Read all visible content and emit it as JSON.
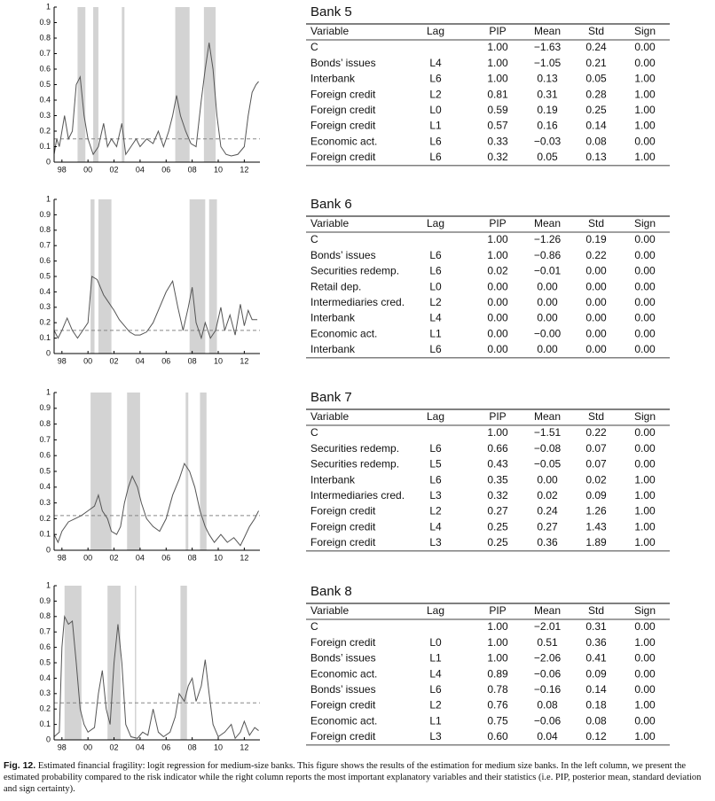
{
  "chart_data": [
    {
      "type": "line",
      "color": "#555555",
      "shade_color": "#d3d3d3",
      "threshold_color": "#888888",
      "x": [
        1997.4,
        1997.6,
        1997.8,
        1998.2,
        1998.5,
        1998.8,
        1999.1,
        1999.4,
        1999.7,
        2000.0,
        2000.4,
        2000.8,
        2001.2,
        2001.5,
        2001.8,
        2002.2,
        2002.6,
        2002.9,
        2003.3,
        2003.7,
        2004.0,
        2004.5,
        2005.0,
        2005.4,
        2005.8,
        2006.2,
        2006.5,
        2006.8,
        2007.1,
        2007.5,
        2007.9,
        2008.3,
        2008.7,
        2009.0,
        2009.3,
        2009.6,
        2009.9,
        2010.2,
        2010.6,
        2011.0,
        2011.5,
        2012.0,
        2012.3,
        2012.6,
        2012.9,
        2013.1
      ],
      "values": [
        0.05,
        0.15,
        0.1,
        0.3,
        0.15,
        0.2,
        0.5,
        0.55,
        0.3,
        0.15,
        0.05,
        0.1,
        0.25,
        0.1,
        0.15,
        0.1,
        0.25,
        0.05,
        0.1,
        0.15,
        0.1,
        0.15,
        0.12,
        0.2,
        0.1,
        0.2,
        0.3,
        0.43,
        0.3,
        0.2,
        0.12,
        0.1,
        0.4,
        0.6,
        0.77,
        0.6,
        0.3,
        0.1,
        0.05,
        0.04,
        0.05,
        0.1,
        0.3,
        0.45,
        0.5,
        0.52
      ],
      "shaded": [
        [
          1999.2,
          1999.8
        ],
        [
          2000.4,
          2000.8
        ],
        [
          2002.6,
          2002.8
        ],
        [
          2006.7,
          2007.8
        ],
        [
          2008.9,
          2009.8
        ]
      ],
      "threshold": 0.15,
      "xlim": [
        1997.4,
        2013.2
      ],
      "ylim": [
        0,
        1
      ],
      "xticks": [
        {
          "value": 1998,
          "label": "98"
        },
        {
          "value": 2000,
          "label": "00"
        },
        {
          "value": 2002,
          "label": "02"
        },
        {
          "value": 2004,
          "label": "04"
        },
        {
          "value": 2006,
          "label": "06"
        },
        {
          "value": 2008,
          "label": "08"
        },
        {
          "value": 2010,
          "label": "10"
        },
        {
          "value": 2012,
          "label": "12"
        }
      ],
      "yticks": [
        0,
        0.1,
        0.2,
        0.3,
        0.4,
        0.5,
        0.6,
        0.7,
        0.8,
        0.9,
        1
      ]
    },
    {
      "type": "line",
      "color": "#555555",
      "shade_color": "#d3d3d3",
      "threshold_color": "#888888",
      "x": [
        1997.4,
        1997.7,
        1998.0,
        1998.4,
        1998.8,
        1999.2,
        1999.6,
        2000.0,
        2000.3,
        2000.7,
        2001.2,
        2001.6,
        2002.0,
        2002.4,
        2002.8,
        2003.2,
        2003.6,
        2004.0,
        2004.5,
        2005.0,
        2005.5,
        2006.0,
        2006.5,
        2006.9,
        2007.3,
        2007.7,
        2008.0,
        2008.3,
        2008.7,
        2009.0,
        2009.4,
        2009.8,
        2010.2,
        2010.5,
        2010.9,
        2011.3,
        2011.7,
        2012.0,
        2012.3,
        2012.6,
        2013.0
      ],
      "values": [
        0.15,
        0.1,
        0.15,
        0.23,
        0.15,
        0.1,
        0.15,
        0.2,
        0.5,
        0.48,
        0.38,
        0.33,
        0.28,
        0.22,
        0.18,
        0.14,
        0.12,
        0.12,
        0.14,
        0.2,
        0.3,
        0.4,
        0.47,
        0.3,
        0.15,
        0.3,
        0.43,
        0.2,
        0.1,
        0.2,
        0.1,
        0.15,
        0.3,
        0.15,
        0.25,
        0.12,
        0.32,
        0.18,
        0.28,
        0.22,
        0.22
      ],
      "shaded": [
        [
          2000.2,
          2000.5
        ],
        [
          2000.8,
          2001.8
        ],
        [
          2007.8,
          2009.0
        ],
        [
          2009.3,
          2009.9
        ]
      ],
      "threshold": 0.15,
      "xlim": [
        1997.4,
        2013.2
      ],
      "ylim": [
        0,
        1
      ],
      "xticks": [
        {
          "value": 1998,
          "label": "98"
        },
        {
          "value": 2000,
          "label": "00"
        },
        {
          "value": 2002,
          "label": "02"
        },
        {
          "value": 2004,
          "label": "04"
        },
        {
          "value": 2006,
          "label": "06"
        },
        {
          "value": 2008,
          "label": "08"
        },
        {
          "value": 2010,
          "label": "10"
        },
        {
          "value": 2012,
          "label": "12"
        }
      ],
      "yticks": [
        0,
        0.1,
        0.2,
        0.3,
        0.4,
        0.5,
        0.6,
        0.7,
        0.8,
        0.9,
        1
      ]
    },
    {
      "type": "line",
      "color": "#555555",
      "shade_color": "#d3d3d3",
      "threshold_color": "#888888",
      "x": [
        1997.4,
        1997.7,
        1998.0,
        1998.5,
        1999.0,
        1999.5,
        2000.0,
        2000.5,
        2000.8,
        2001.1,
        2001.5,
        2001.8,
        2002.2,
        2002.5,
        2002.8,
        2003.1,
        2003.4,
        2003.8,
        2004.1,
        2004.5,
        2005.0,
        2005.5,
        2006.0,
        2006.5,
        2007.0,
        2007.4,
        2007.8,
        2008.2,
        2008.6,
        2009.0,
        2009.3,
        2009.7,
        2010.2,
        2010.7,
        2011.2,
        2011.7,
        2012.0,
        2012.4,
        2012.8,
        2013.1
      ],
      "values": [
        0.1,
        0.05,
        0.12,
        0.18,
        0.2,
        0.22,
        0.25,
        0.28,
        0.35,
        0.25,
        0.2,
        0.12,
        0.1,
        0.15,
        0.3,
        0.4,
        0.47,
        0.4,
        0.3,
        0.2,
        0.15,
        0.12,
        0.2,
        0.35,
        0.45,
        0.55,
        0.5,
        0.4,
        0.25,
        0.15,
        0.1,
        0.05,
        0.1,
        0.05,
        0.08,
        0.03,
        0.08,
        0.15,
        0.2,
        0.25
      ],
      "shaded": [
        [
          2000.2,
          2001.8
        ],
        [
          2003.0,
          2004.0
        ],
        [
          2007.5,
          2007.7
        ],
        [
          2008.6,
          2009.1
        ]
      ],
      "threshold": 0.22,
      "xlim": [
        1997.4,
        2013.2
      ],
      "ylim": [
        0,
        1
      ],
      "xticks": [
        {
          "value": 1998,
          "label": "98"
        },
        {
          "value": 2000,
          "label": "00"
        },
        {
          "value": 2002,
          "label": "02"
        },
        {
          "value": 2004,
          "label": "04"
        },
        {
          "value": 2006,
          "label": "06"
        },
        {
          "value": 2008,
          "label": "08"
        },
        {
          "value": 2010,
          "label": "10"
        },
        {
          "value": 2012,
          "label": "12"
        }
      ],
      "yticks": [
        0,
        0.1,
        0.2,
        0.3,
        0.4,
        0.5,
        0.6,
        0.7,
        0.8,
        0.9,
        1
      ]
    },
    {
      "type": "line",
      "color": "#555555",
      "shade_color": "#d3d3d3",
      "threshold_color": "#888888",
      "x": [
        1997.4,
        1997.8,
        1998.0,
        1998.2,
        1998.5,
        1998.8,
        1999.1,
        1999.4,
        1999.7,
        2000.0,
        2000.5,
        2000.8,
        2001.1,
        2001.4,
        2001.7,
        2002.0,
        2002.3,
        2002.6,
        2002.9,
        2003.3,
        2003.8,
        2004.2,
        2004.6,
        2005.0,
        2005.4,
        2005.8,
        2006.3,
        2006.7,
        2007.0,
        2007.4,
        2007.7,
        2008.0,
        2008.3,
        2008.7,
        2009.0,
        2009.3,
        2009.6,
        2010.0,
        2010.5,
        2011.0,
        2011.3,
        2011.7,
        2012.0,
        2012.4,
        2012.8,
        2013.1
      ],
      "values": [
        0.02,
        0.05,
        0.6,
        0.8,
        0.75,
        0.77,
        0.5,
        0.2,
        0.1,
        0.05,
        0.08,
        0.3,
        0.45,
        0.2,
        0.1,
        0.5,
        0.75,
        0.5,
        0.1,
        0.02,
        0.01,
        0.05,
        0.03,
        0.2,
        0.05,
        0.02,
        0.05,
        0.15,
        0.3,
        0.25,
        0.35,
        0.4,
        0.25,
        0.35,
        0.52,
        0.3,
        0.1,
        0.02,
        0.05,
        0.1,
        0.01,
        0.05,
        0.12,
        0.03,
        0.08,
        0.06
      ],
      "shaded": [
        [
          1998.2,
          1999.5
        ],
        [
          2001.5,
          2002.5
        ],
        [
          2003.6,
          2003.7
        ],
        [
          2007.1,
          2007.6
        ]
      ],
      "threshold": 0.24,
      "xlim": [
        1997.4,
        2013.2
      ],
      "ylim": [
        0,
        1
      ],
      "xticks": [
        {
          "value": 1998,
          "label": "98"
        },
        {
          "value": 2000,
          "label": "00"
        },
        {
          "value": 2002,
          "label": "02"
        },
        {
          "value": 2004,
          "label": "04"
        },
        {
          "value": 2006,
          "label": "06"
        },
        {
          "value": 2008,
          "label": "08"
        },
        {
          "value": 2010,
          "label": "10"
        },
        {
          "value": 2012,
          "label": "12"
        }
      ],
      "yticks": [
        0,
        0.1,
        0.2,
        0.3,
        0.4,
        0.5,
        0.6,
        0.7,
        0.8,
        0.9,
        1
      ]
    }
  ],
  "tables": [
    {
      "title": "Bank 5",
      "columns": [
        "Variable",
        "Lag",
        "PIP",
        "Mean",
        "Std",
        "Sign"
      ],
      "rows": [
        [
          "C",
          "",
          "1.00",
          "−1.63",
          "0.24",
          "0.00"
        ],
        [
          "Bonds’ issues",
          "L4",
          "1.00",
          "−1.05",
          "0.21",
          "0.00"
        ],
        [
          "Interbank",
          "L6",
          "1.00",
          "0.13",
          "0.05",
          "1.00"
        ],
        [
          "Foreign credit",
          "L2",
          "0.81",
          "0.31",
          "0.28",
          "1.00"
        ],
        [
          "Foreign credit",
          "L0",
          "0.59",
          "0.19",
          "0.25",
          "1.00"
        ],
        [
          "Foreign credit",
          "L1",
          "0.57",
          "0.16",
          "0.14",
          "1.00"
        ],
        [
          "Economic act.",
          "L6",
          "0.33",
          "−0.03",
          "0.08",
          "0.00"
        ],
        [
          "Foreign credit",
          "L6",
          "0.32",
          "0.05",
          "0.13",
          "1.00"
        ]
      ]
    },
    {
      "title": "Bank 6",
      "columns": [
        "Variable",
        "Lag",
        "PIP",
        "Mean",
        "Std",
        "Sign"
      ],
      "rows": [
        [
          "C",
          "",
          "1.00",
          "−1.26",
          "0.19",
          "0.00"
        ],
        [
          "Bonds’ issues",
          "L6",
          "1.00",
          "−0.86",
          "0.22",
          "0.00"
        ],
        [
          "Securities redemp.",
          "L6",
          "0.02",
          "−0.01",
          "0.00",
          "0.00"
        ],
        [
          "Retail dep.",
          "L0",
          "0.00",
          "0.00",
          "0.00",
          "0.00"
        ],
        [
          "Intermediaries cred.",
          "L2",
          "0.00",
          "0.00",
          "0.00",
          "0.00"
        ],
        [
          "Interbank",
          "L4",
          "0.00",
          "0.00",
          "0.00",
          "0.00"
        ],
        [
          "Economic act.",
          "L1",
          "0.00",
          "−0.00",
          "0.00",
          "0.00"
        ],
        [
          "Interbank",
          "L6",
          "0.00",
          "0.00",
          "0.00",
          "0.00"
        ]
      ]
    },
    {
      "title": "Bank 7",
      "columns": [
        "Variable",
        "Lag",
        "PIP",
        "Mean",
        "Std",
        "Sign"
      ],
      "rows": [
        [
          "C",
          "",
          "1.00",
          "−1.51",
          "0.22",
          "0.00"
        ],
        [
          "Securities redemp.",
          "L6",
          "0.66",
          "−0.08",
          "0.07",
          "0.00"
        ],
        [
          "Securities redemp.",
          "L5",
          "0.43",
          "−0.05",
          "0.07",
          "0.00"
        ],
        [
          "Interbank",
          "L6",
          "0.35",
          "0.00",
          "0.02",
          "1.00"
        ],
        [
          "Intermediaries cred.",
          "L3",
          "0.32",
          "0.02",
          "0.09",
          "1.00"
        ],
        [
          "Foreign credit",
          "L2",
          "0.27",
          "0.24",
          "1.26",
          "1.00"
        ],
        [
          "Foreign credit",
          "L4",
          "0.25",
          "0.27",
          "1.43",
          "1.00"
        ],
        [
          "Foreign credit",
          "L3",
          "0.25",
          "0.36",
          "1.89",
          "1.00"
        ]
      ]
    },
    {
      "title": "Bank 8",
      "columns": [
        "Variable",
        "Lag",
        "PIP",
        "Mean",
        "Std",
        "Sign"
      ],
      "rows": [
        [
          "C",
          "",
          "1.00",
          "−2.01",
          "0.31",
          "0.00"
        ],
        [
          "Foreign credit",
          "L0",
          "1.00",
          "0.51",
          "0.36",
          "1.00"
        ],
        [
          "Bonds’ issues",
          "L1",
          "1.00",
          "−2.06",
          "0.41",
          "0.00"
        ],
        [
          "Economic act.",
          "L4",
          "0.89",
          "−0.06",
          "0.09",
          "0.00"
        ],
        [
          "Bonds’ issues",
          "L6",
          "0.78",
          "−0.16",
          "0.14",
          "0.00"
        ],
        [
          "Foreign credit",
          "L2",
          "0.76",
          "0.08",
          "0.18",
          "1.00"
        ],
        [
          "Economic act.",
          "L1",
          "0.75",
          "−0.06",
          "0.08",
          "0.00"
        ],
        [
          "Foreign credit",
          "L3",
          "0.60",
          "0.04",
          "0.12",
          "1.00"
        ]
      ]
    }
  ],
  "caption": {
    "label": "Fig. 12.",
    "text": "Estimated financial fragility: logit regression for medium-size banks. This figure shows the results of the estimation for medium size banks. In the left column, we present the estimated probability compared to the risk indicator while the right column reports the most important explanatory variables and their statistics (i.e. PIP, posterior mean, standard deviation and sign certainty)."
  }
}
